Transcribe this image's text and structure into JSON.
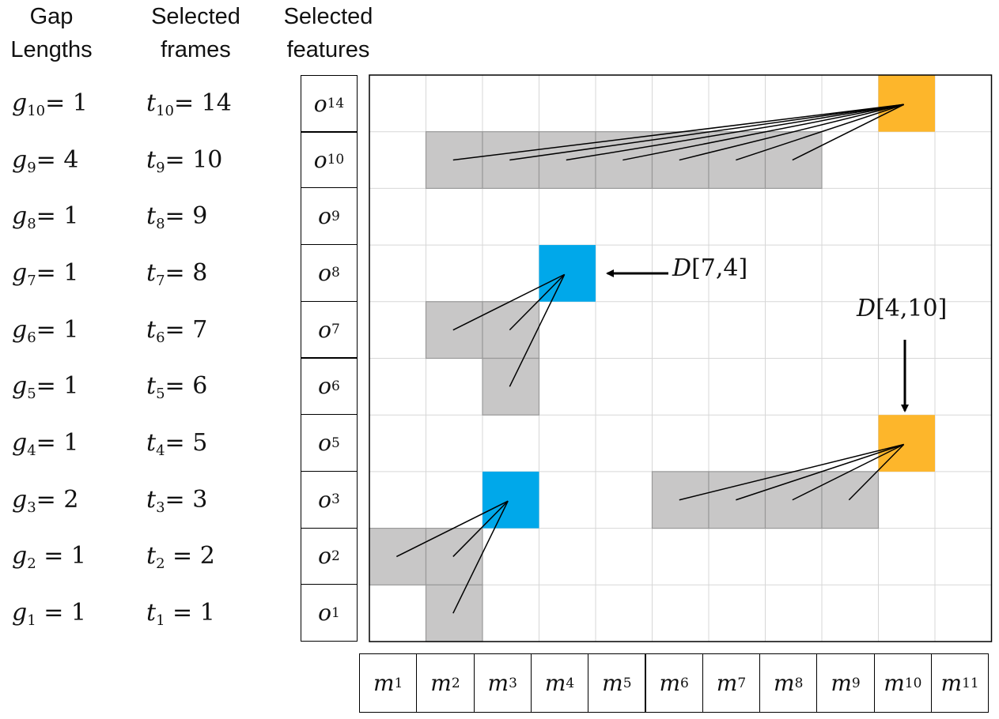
{
  "headers": {
    "gap": [
      "Gap",
      "Lengths"
    ],
    "frames": [
      "Selected",
      "frames"
    ],
    "features": [
      "Selected",
      "features"
    ]
  },
  "rows": [
    {
      "g_sym": "g",
      "g_sub": "10",
      "g_val": "= 1",
      "t_sym": "t",
      "t_sub": "10",
      "t_val": "= 14",
      "o_sym": "o",
      "o_sub": "14"
    },
    {
      "g_sym": "g",
      "g_sub": "9",
      "g_val": "= 4",
      "t_sym": "t",
      "t_sub": "9",
      "t_val": "= 10",
      "o_sym": "o",
      "o_sub": "10"
    },
    {
      "g_sym": "g",
      "g_sub": "8",
      "g_val": "= 1",
      "t_sym": "t",
      "t_sub": "8",
      "t_val": "= 9",
      "o_sym": "o",
      "o_sub": "9"
    },
    {
      "g_sym": "g",
      "g_sub": "7",
      "g_val": "= 1",
      "t_sym": "t",
      "t_sub": "7",
      "t_val": "= 8",
      "o_sym": "o",
      "o_sub": "8"
    },
    {
      "g_sym": "g",
      "g_sub": "6",
      "g_val": "= 1",
      "t_sym": "t",
      "t_sub": "6",
      "t_val": "= 7",
      "o_sym": "o",
      "o_sub": "7"
    },
    {
      "g_sym": "g",
      "g_sub": "5",
      "g_val": "= 1",
      "t_sym": "t",
      "t_sub": "5",
      "t_val": "= 6",
      "o_sym": "o",
      "o_sub": "6"
    },
    {
      "g_sym": "g",
      "g_sub": "4",
      "g_val": "= 1",
      "t_sym": "t",
      "t_sub": "4",
      "t_val": "= 5",
      "o_sym": "o",
      "o_sub": "5"
    },
    {
      "g_sym": "g",
      "g_sub": "3",
      "g_val": "= 2",
      "t_sym": "t",
      "t_sub": "3",
      "t_val": "= 3",
      "o_sym": "o",
      "o_sub": "3"
    },
    {
      "g_sym": "g",
      "g_sub": "2",
      "g_val": " = 1",
      "t_sym": "t",
      "t_sub": "2",
      "t_val": " = 2",
      "o_sym": "o",
      "o_sub": "2"
    },
    {
      "g_sym": "g",
      "g_sub": "1",
      "g_val": " = 1",
      "t_sym": "t",
      "t_sub": "1",
      "t_val": " = 1",
      "o_sym": "o",
      "o_sub": "1"
    }
  ],
  "columns": [
    {
      "sym": "m",
      "sub": "1"
    },
    {
      "sym": "m",
      "sub": "2"
    },
    {
      "sym": "m",
      "sub": "3"
    },
    {
      "sym": "m",
      "sub": "4"
    },
    {
      "sym": "m",
      "sub": "5"
    },
    {
      "sym": "m",
      "sub": "6"
    },
    {
      "sym": "m",
      "sub": "7"
    },
    {
      "sym": "m",
      "sub": "8"
    },
    {
      "sym": "m",
      "sub": "9"
    },
    {
      "sym": "m",
      "sub": "10"
    },
    {
      "sym": "m",
      "sub": "11"
    }
  ],
  "annotations": {
    "d74_sym": "D",
    "d74_args": "[7,4]",
    "d410_sym": "D",
    "d410_args": "[4,10]"
  },
  "colors": {
    "orange": "#FDB62B",
    "blue": "#00A8EA",
    "gray": "#C8C7C7",
    "grid": "#D7D7D7"
  },
  "highlights": [
    {
      "kind": "orange",
      "row": 0,
      "col": 9
    },
    {
      "kind": "orange",
      "row": 6,
      "col": 9
    },
    {
      "kind": "blue",
      "row": 3,
      "col": 3
    },
    {
      "kind": "blue",
      "row": 7,
      "col": 2
    }
  ],
  "gray_cells": [
    [
      1,
      1
    ],
    [
      1,
      2
    ],
    [
      1,
      3
    ],
    [
      1,
      4
    ],
    [
      1,
      5
    ],
    [
      1,
      6
    ],
    [
      1,
      7
    ],
    [
      4,
      1
    ],
    [
      4,
      2
    ],
    [
      5,
      2
    ],
    [
      7,
      5
    ],
    [
      7,
      6
    ],
    [
      7,
      7
    ],
    [
      7,
      8
    ],
    [
      8,
      0
    ],
    [
      8,
      1
    ],
    [
      9,
      1
    ]
  ],
  "links": [
    {
      "target": [
        0,
        9
      ],
      "sources": [
        [
          1,
          1
        ],
        [
          1,
          2
        ],
        [
          1,
          3
        ],
        [
          1,
          4
        ],
        [
          1,
          5
        ],
        [
          1,
          6
        ],
        [
          1,
          7
        ]
      ]
    },
    {
      "target": [
        3,
        3
      ],
      "sources": [
        [
          4,
          1
        ],
        [
          4,
          2
        ],
        [
          5,
          2
        ]
      ]
    },
    {
      "target": [
        6,
        9
      ],
      "sources": [
        [
          7,
          5
        ],
        [
          7,
          6
        ],
        [
          7,
          7
        ],
        [
          7,
          8
        ]
      ]
    },
    {
      "target": [
        7,
        2
      ],
      "sources": [
        [
          8,
          0
        ],
        [
          8,
          1
        ],
        [
          9,
          1
        ]
      ]
    }
  ]
}
